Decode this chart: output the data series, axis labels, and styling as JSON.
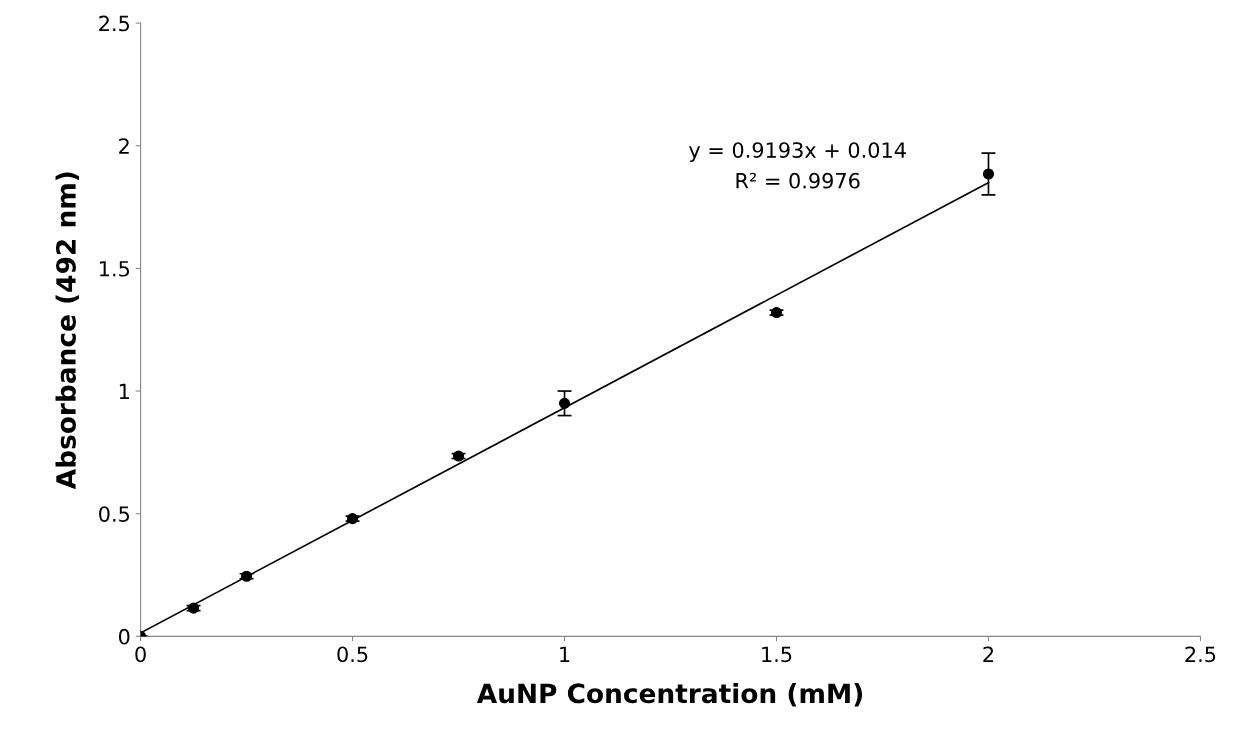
{
  "chart_data": {
    "type": "scatter",
    "xlabel": "AuNP Concentration (mM)",
    "ylabel": "Absorbance (492 nm)",
    "xlim": [
      0,
      2.5
    ],
    "xticks": [
      0,
      0.5,
      1,
      1.5,
      2,
      2.5
    ],
    "ylim": [
      0,
      2.5
    ],
    "yticks": [
      0,
      0.5,
      1,
      1.5,
      2,
      2.5
    ],
    "grid": false,
    "legend": false,
    "series": [
      {
        "color": "#000000",
        "marker": "circle",
        "x": [
          0,
          0.125,
          0.25,
          0.5,
          0.75,
          1,
          1.5,
          2
        ],
        "values": [
          0,
          0.115,
          0.245,
          0.48,
          0.735,
          0.95,
          1.32,
          1.885
        ],
        "errors": [
          null,
          0.01,
          0.01,
          0.01,
          0.01,
          0.05,
          0.01,
          0.085
        ]
      },
      {
        "type": "line",
        "color": "#000000",
        "line_style": "solid",
        "x": [
          0,
          2
        ],
        "values": [
          0.014,
          1.85
        ]
      }
    ],
    "annotations": [
      "y = 0.9193x + 0.014",
      "R² = 0.9976"
    ]
  }
}
